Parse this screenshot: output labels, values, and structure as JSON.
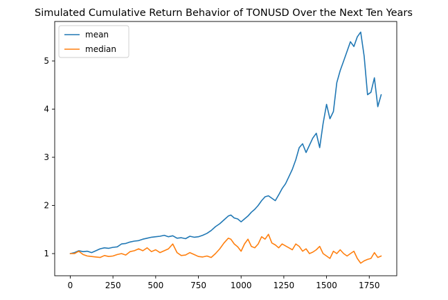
{
  "chart_data": {
    "type": "line",
    "title": "Simulated Cumulative Return Behavior of TONUSD Over the Next Ten Years",
    "xlabel": "",
    "ylabel": "",
    "xlim": [
      -91,
      1911
    ],
    "ylim": [
      0.54,
      5.82
    ],
    "xticks": [
      0,
      250,
      500,
      750,
      1000,
      1250,
      1500,
      1750
    ],
    "yticks": [
      1,
      2,
      3,
      4,
      5
    ],
    "grid": false,
    "legend_position": "top-left",
    "series": [
      {
        "name": "mean",
        "color": "#1f77b4",
        "x": [
          0,
          25,
          50,
          75,
          100,
          125,
          150,
          175,
          200,
          225,
          250,
          275,
          300,
          325,
          350,
          375,
          400,
          425,
          450,
          475,
          500,
          525,
          550,
          575,
          600,
          625,
          650,
          675,
          700,
          725,
          750,
          775,
          800,
          825,
          850,
          875,
          900,
          925,
          940,
          960,
          980,
          1000,
          1020,
          1040,
          1060,
          1080,
          1100,
          1120,
          1140,
          1160,
          1180,
          1200,
          1220,
          1240,
          1260,
          1280,
          1300,
          1320,
          1340,
          1360,
          1380,
          1400,
          1420,
          1440,
          1460,
          1480,
          1500,
          1520,
          1540,
          1560,
          1580,
          1600,
          1620,
          1640,
          1660,
          1680,
          1700,
          1720,
          1740,
          1760,
          1780,
          1800,
          1820
        ],
        "values": [
          1.0,
          1.02,
          1.06,
          1.04,
          1.05,
          1.02,
          1.06,
          1.1,
          1.12,
          1.11,
          1.13,
          1.14,
          1.2,
          1.21,
          1.24,
          1.26,
          1.27,
          1.3,
          1.32,
          1.34,
          1.35,
          1.36,
          1.38,
          1.35,
          1.37,
          1.32,
          1.33,
          1.31,
          1.36,
          1.34,
          1.35,
          1.38,
          1.42,
          1.48,
          1.56,
          1.62,
          1.7,
          1.78,
          1.8,
          1.74,
          1.72,
          1.66,
          1.72,
          1.78,
          1.86,
          1.92,
          2.0,
          2.1,
          2.18,
          2.2,
          2.15,
          2.1,
          2.22,
          2.35,
          2.45,
          2.6,
          2.75,
          2.95,
          3.2,
          3.28,
          3.1,
          3.25,
          3.4,
          3.5,
          3.2,
          3.7,
          4.1,
          3.8,
          3.95,
          4.55,
          4.8,
          5.0,
          5.2,
          5.4,
          5.3,
          5.5,
          5.6,
          5.1,
          4.3,
          4.35,
          4.65,
          4.05,
          4.3
        ]
      },
      {
        "name": "median",
        "color": "#ff7f0e",
        "x": [
          0,
          25,
          50,
          75,
          100,
          125,
          150,
          175,
          200,
          225,
          250,
          275,
          300,
          325,
          350,
          375,
          400,
          425,
          450,
          475,
          500,
          525,
          550,
          575,
          600,
          625,
          650,
          675,
          700,
          725,
          750,
          775,
          800,
          825,
          850,
          875,
          900,
          925,
          940,
          960,
          980,
          1000,
          1020,
          1040,
          1060,
          1080,
          1100,
          1120,
          1140,
          1160,
          1180,
          1200,
          1220,
          1240,
          1260,
          1280,
          1300,
          1320,
          1340,
          1360,
          1380,
          1400,
          1420,
          1440,
          1460,
          1480,
          1500,
          1520,
          1540,
          1560,
          1580,
          1600,
          1620,
          1640,
          1660,
          1680,
          1700,
          1720,
          1740,
          1760,
          1780,
          1800,
          1820
        ],
        "values": [
          1.0,
          1.0,
          1.05,
          0.98,
          0.95,
          0.94,
          0.93,
          0.92,
          0.96,
          0.94,
          0.95,
          0.98,
          1.0,
          0.97,
          1.04,
          1.06,
          1.1,
          1.06,
          1.12,
          1.04,
          1.08,
          1.02,
          1.06,
          1.1,
          1.2,
          1.02,
          0.96,
          0.97,
          1.02,
          0.98,
          0.94,
          0.93,
          0.95,
          0.92,
          1.0,
          1.1,
          1.22,
          1.32,
          1.3,
          1.2,
          1.14,
          1.05,
          1.2,
          1.3,
          1.15,
          1.12,
          1.2,
          1.35,
          1.3,
          1.4,
          1.22,
          1.18,
          1.12,
          1.2,
          1.16,
          1.12,
          1.08,
          1.2,
          1.15,
          1.05,
          1.1,
          1.0,
          1.03,
          1.08,
          1.15,
          1.0,
          0.95,
          0.9,
          1.05,
          1.0,
          1.08,
          1.0,
          0.95,
          1.0,
          1.05,
          0.9,
          0.8,
          0.85,
          0.88,
          0.9,
          1.02,
          0.92,
          0.95
        ]
      }
    ]
  }
}
